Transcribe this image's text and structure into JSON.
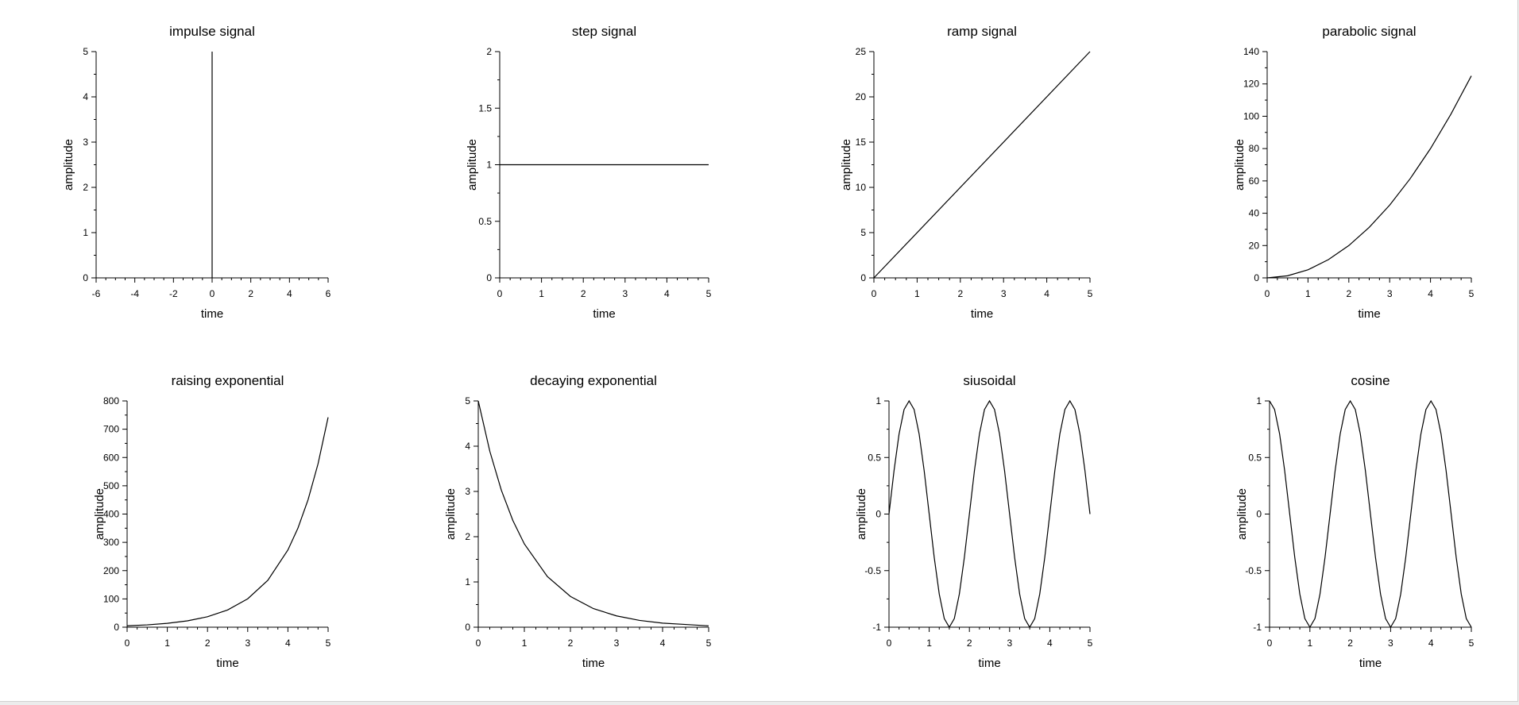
{
  "colors": {
    "background": "#ffffff",
    "line": "#000000",
    "window": "#ececec"
  },
  "chart_data": [
    {
      "type": "line",
      "title": "impulse signal",
      "xlabel": "time",
      "ylabel": "amplitude",
      "xlim": [
        -6,
        6
      ],
      "ylim": [
        0,
        5
      ],
      "xticks": [
        "-6",
        "-4",
        "-2",
        "0",
        "2",
        "4",
        "6"
      ],
      "yticks": [
        "0",
        "1",
        "2",
        "3",
        "4",
        "5"
      ],
      "series": [
        {
          "x": [
            0,
            0
          ],
          "y": [
            0,
            5
          ]
        }
      ]
    },
    {
      "type": "line",
      "title": "step signal",
      "xlabel": "time",
      "ylabel": "amplitude",
      "xlim": [
        0,
        5
      ],
      "ylim": [
        0,
        2
      ],
      "xticks": [
        "0",
        "1",
        "2",
        "3",
        "4",
        "5"
      ],
      "yticks": [
        "0",
        "0.5",
        "1",
        "1.5",
        "2"
      ],
      "series": [
        {
          "x": [
            0,
            5
          ],
          "y": [
            1,
            1
          ]
        }
      ]
    },
    {
      "type": "line",
      "title": "ramp signal",
      "xlabel": "time",
      "ylabel": "amplitude",
      "xlim": [
        0,
        5
      ],
      "ylim": [
        0,
        25
      ],
      "xticks": [
        "0",
        "1",
        "2",
        "3",
        "4",
        "5"
      ],
      "yticks": [
        "0",
        "5",
        "10",
        "15",
        "20",
        "25"
      ],
      "series": [
        {
          "x": [
            0,
            5
          ],
          "y": [
            0,
            25
          ]
        }
      ]
    },
    {
      "type": "line",
      "title": "parabolic signal",
      "xlabel": "time",
      "ylabel": "amplitude",
      "xlim": [
        0,
        5
      ],
      "ylim": [
        0,
        140
      ],
      "xticks": [
        "0",
        "1",
        "2",
        "3",
        "4",
        "5"
      ],
      "yticks": [
        "0",
        "20",
        "40",
        "60",
        "80",
        "100",
        "120",
        "140"
      ],
      "series": [
        {
          "x": [
            0,
            0.5,
            1,
            1.5,
            2,
            2.5,
            3,
            3.5,
            4,
            4.5,
            5
          ],
          "y": [
            0,
            1.3,
            5,
            11.3,
            20,
            31.3,
            45,
            61.3,
            80,
            101.3,
            125
          ]
        }
      ]
    },
    {
      "type": "line",
      "title": "raising exponential",
      "xlabel": "time",
      "ylabel": "amplitude",
      "xlim": [
        0,
        5
      ],
      "ylim": [
        0,
        800
      ],
      "xticks": [
        "0",
        "1",
        "2",
        "3",
        "4",
        "5"
      ],
      "yticks": [
        "0",
        "100",
        "200",
        "300",
        "400",
        "500",
        "600",
        "700",
        "800"
      ],
      "series": [
        {
          "x": [
            0,
            0.5,
            1,
            1.5,
            2,
            2.5,
            3,
            3.5,
            4,
            4.25,
            4.5,
            4.75,
            5
          ],
          "y": [
            5,
            8.2,
            13.6,
            22.4,
            36.9,
            60.9,
            100.4,
            165.6,
            273,
            350.6,
            450.1,
            577.9,
            742
          ]
        }
      ]
    },
    {
      "type": "line",
      "title": "decaying exponential",
      "xlabel": "time",
      "ylabel": "amplitude",
      "xlim": [
        0,
        5
      ],
      "ylim": [
        0,
        5
      ],
      "xticks": [
        "0",
        "1",
        "2",
        "3",
        "4",
        "5"
      ],
      "yticks": [
        "0",
        "1",
        "2",
        "3",
        "4",
        "5"
      ],
      "series": [
        {
          "x": [
            0,
            0.25,
            0.5,
            0.75,
            1,
            1.5,
            2,
            2.5,
            3,
            3.5,
            4,
            4.5,
            5
          ],
          "y": [
            5,
            3.89,
            3.03,
            2.36,
            1.84,
            1.12,
            0.68,
            0.41,
            0.25,
            0.15,
            0.09,
            0.06,
            0.03
          ]
        }
      ]
    },
    {
      "type": "line",
      "title": "siusoidal",
      "xlabel": "time",
      "ylabel": "amplitude",
      "xlim": [
        0,
        5
      ],
      "ylim": [
        -1,
        1
      ],
      "xticks": [
        "0",
        "1",
        "2",
        "3",
        "4",
        "5"
      ],
      "yticks": [
        "-1",
        "-0.5",
        "0",
        "0.5",
        "1"
      ],
      "series": [
        {
          "x": [
            0,
            0.125,
            0.25,
            0.375,
            0.5,
            0.625,
            0.75,
            0.875,
            1,
            1.125,
            1.25,
            1.375,
            1.5,
            1.625,
            1.75,
            1.875,
            2,
            2.125,
            2.25,
            2.375,
            2.5,
            2.625,
            2.75,
            2.875,
            3,
            3.125,
            3.25,
            3.375,
            3.5,
            3.625,
            3.75,
            3.875,
            4,
            4.125,
            4.25,
            4.375,
            4.5,
            4.625,
            4.75,
            4.875,
            5
          ],
          "y": [
            0,
            0.383,
            0.707,
            0.924,
            1,
            0.924,
            0.707,
            0.383,
            0,
            -0.383,
            -0.707,
            -0.924,
            -1,
            -0.924,
            -0.707,
            -0.383,
            0,
            0.383,
            0.707,
            0.924,
            1,
            0.924,
            0.707,
            0.383,
            0,
            -0.383,
            -0.707,
            -0.924,
            -1,
            -0.924,
            -0.707,
            -0.383,
            0,
            0.383,
            0.707,
            0.924,
            1,
            0.924,
            0.707,
            0.383,
            0
          ]
        }
      ]
    },
    {
      "type": "line",
      "title": "cosine",
      "xlabel": "time",
      "ylabel": "amplitude",
      "xlim": [
        0,
        5
      ],
      "ylim": [
        -1,
        1
      ],
      "xticks": [
        "0",
        "1",
        "2",
        "3",
        "4",
        "5"
      ],
      "yticks": [
        "-1",
        "-0.5",
        "0",
        "0.5",
        "1"
      ],
      "series": [
        {
          "x": [
            0,
            0.125,
            0.25,
            0.375,
            0.5,
            0.625,
            0.75,
            0.875,
            1,
            1.125,
            1.25,
            1.375,
            1.5,
            1.625,
            1.75,
            1.875,
            2,
            2.125,
            2.25,
            2.375,
            2.5,
            2.625,
            2.75,
            2.875,
            3,
            3.125,
            3.25,
            3.375,
            3.5,
            3.625,
            3.75,
            3.875,
            4,
            4.125,
            4.25,
            4.375,
            4.5,
            4.625,
            4.75,
            4.875,
            5
          ],
          "y": [
            1,
            0.924,
            0.707,
            0.383,
            0,
            -0.383,
            -0.707,
            -0.924,
            -1,
            -0.924,
            -0.707,
            -0.383,
            0,
            0.383,
            0.707,
            0.924,
            1,
            0.924,
            0.707,
            0.383,
            0,
            -0.383,
            -0.707,
            -0.924,
            -1,
            -0.924,
            -0.707,
            -0.383,
            0,
            0.383,
            0.707,
            0.924,
            1,
            0.924,
            0.707,
            0.383,
            0,
            -0.383,
            -0.707,
            -0.924,
            -1
          ]
        }
      ]
    }
  ]
}
